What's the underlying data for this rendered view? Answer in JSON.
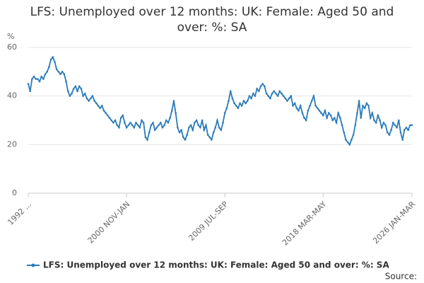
{
  "chart_data": {
    "type": "line",
    "title": "LFS: Unemployed over 12 months: UK: Female: Aged 50 and over: %: SA",
    "y_label": "%",
    "source_label": "Source:",
    "categories": [
      "1992 ...",
      null,
      null,
      null,
      null,
      null,
      null,
      null,
      null,
      null,
      null,
      null,
      null,
      null,
      null,
      null,
      null,
      null,
      null,
      null,
      null,
      null,
      null,
      null,
      null,
      null,
      null,
      null,
      null,
      null,
      null,
      null,
      null,
      null,
      null,
      null,
      null,
      null,
      null,
      null,
      null,
      null,
      null,
      null,
      null,
      null,
      null,
      null,
      null,
      null,
      null,
      null,
      "2000 NOV-JAN",
      null,
      null,
      null,
      null,
      null,
      null,
      null,
      null,
      null,
      null,
      null,
      null,
      null,
      null,
      null,
      null,
      null,
      null,
      null,
      null,
      null,
      null,
      null,
      null,
      null,
      null,
      null,
      null,
      null,
      null,
      null,
      null,
      null,
      null,
      null,
      null,
      null,
      null,
      null,
      null,
      null,
      null,
      null,
      null,
      null,
      null,
      null,
      null,
      null,
      null,
      null,
      "2009 JUL-SEP",
      null,
      null,
      null,
      null,
      null,
      null,
      null,
      null,
      null,
      null,
      null,
      null,
      null,
      null,
      null,
      null,
      null,
      null,
      null,
      null,
      null,
      null,
      null,
      null,
      null,
      null,
      null,
      null,
      null,
      null,
      null,
      null,
      null,
      null,
      null,
      null,
      null,
      null,
      null,
      null,
      null,
      null,
      null,
      null,
      null,
      null,
      null,
      null,
      null,
      null,
      null,
      "2018 MAR-MAY",
      null,
      null,
      null,
      null,
      null,
      null,
      null,
      null,
      null,
      null,
      null,
      null,
      null,
      null,
      null,
      null,
      null,
      null,
      null,
      null,
      null,
      null,
      null,
      null,
      null,
      null,
      null,
      null,
      null,
      null,
      null,
      null,
      null,
      null,
      null,
      null,
      null,
      null,
      null,
      null,
      null,
      null,
      null,
      null,
      null,
      null,
      "2026 JAN-MAR"
    ],
    "series": [
      {
        "name": "LFS: Unemployed over 12 months: UK: Female: Aged 50 and over: %: SA",
        "color": "#2b7bb9",
        "values": [
          45,
          42,
          47,
          48,
          47,
          47,
          46,
          48,
          47,
          49,
          50,
          52,
          55,
          56,
          54,
          51,
          50,
          49,
          50,
          49,
          46,
          42,
          40,
          41,
          43,
          44,
          42,
          44,
          43,
          40,
          41,
          39,
          38,
          39,
          40,
          38,
          37,
          36,
          35,
          36,
          34,
          33,
          32,
          31,
          30,
          29,
          30,
          28,
          27,
          31,
          32,
          29,
          27,
          28,
          29,
          28,
          27,
          29,
          28,
          27,
          30,
          29,
          23,
          22,
          25,
          28,
          29,
          26,
          27,
          28,
          29,
          27,
          28,
          30,
          29,
          31,
          34,
          38,
          33,
          27,
          25,
          26,
          23,
          22,
          24,
          27,
          28,
          26,
          29,
          30,
          28,
          27,
          30,
          26,
          28,
          24,
          23,
          22,
          25,
          27,
          30,
          27,
          26,
          29,
          33,
          35,
          38,
          42,
          39,
          37,
          36,
          35,
          37,
          36,
          38,
          37,
          38,
          40,
          39,
          41,
          40,
          43,
          42,
          44,
          45,
          44,
          41,
          40,
          39,
          41,
          42,
          41,
          40,
          42,
          41,
          40,
          39,
          38,
          39,
          40,
          36,
          37,
          35,
          34,
          36,
          33,
          31,
          30,
          34,
          36,
          38,
          40,
          36,
          35,
          34,
          33,
          32,
          34,
          31,
          33,
          32,
          30,
          31,
          29,
          33,
          31,
          28,
          25,
          22,
          21,
          20,
          22,
          24,
          28,
          33,
          38,
          31,
          36,
          35,
          37,
          36,
          31,
          33,
          30,
          29,
          32,
          30,
          27,
          29,
          28,
          25,
          24,
          26,
          29,
          28,
          27,
          30,
          25,
          22,
          26,
          27,
          26,
          28,
          28
        ]
      }
    ],
    "ylim": [
      0,
      60
    ],
    "yticks": [
      0,
      20,
      40,
      60
    ],
    "grid": true
  }
}
